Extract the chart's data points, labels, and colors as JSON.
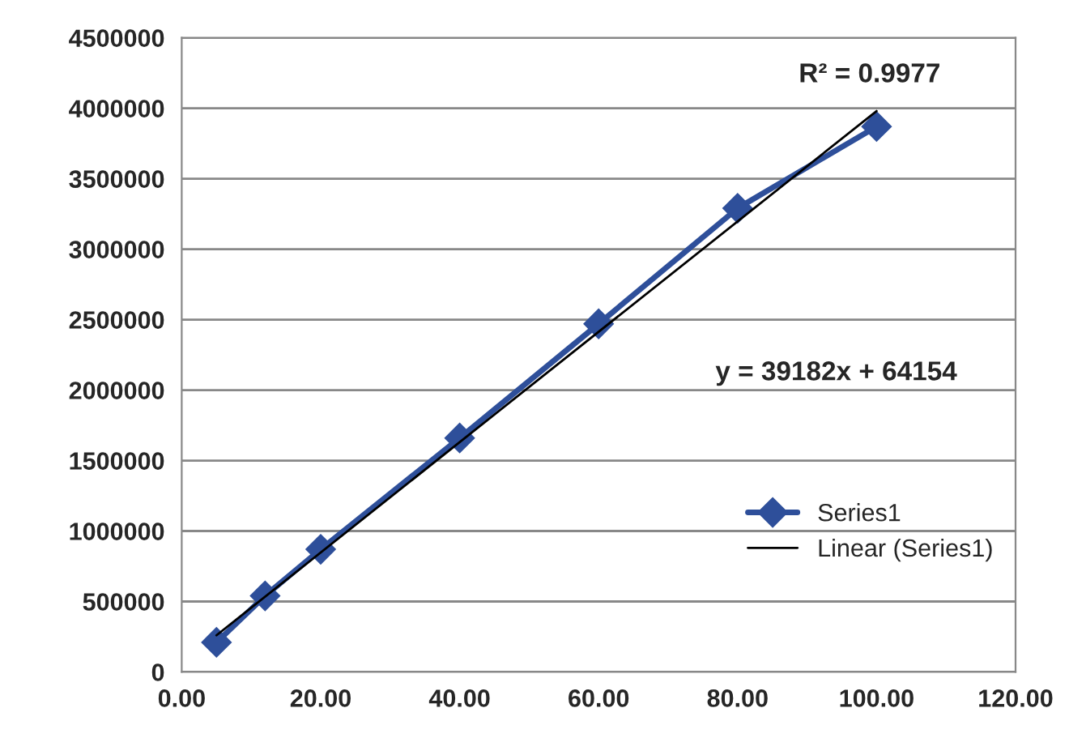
{
  "chart_data": {
    "type": "line",
    "series": [
      {
        "name": "Series1",
        "color": "#2e4f9a",
        "marker": "diamond",
        "x": [
          5,
          12,
          20,
          40,
          60,
          80,
          100
        ],
        "values": [
          210000,
          540000,
          870000,
          1660000,
          2470000,
          3290000,
          3870000
        ]
      },
      {
        "name": "Linear (Series1)",
        "color": "#000000",
        "marker": "none",
        "x": [
          5,
          100
        ],
        "values": [
          260000,
          3980000
        ]
      }
    ],
    "annotations": [
      "R² = 0.9977",
      "y = 39182x + 64154"
    ],
    "xlim": [
      0,
      120
    ],
    "xticks": [
      {
        "value": 0,
        "label": "0.00"
      },
      {
        "value": 20,
        "label": "20.00"
      },
      {
        "value": 40,
        "label": "40.00"
      },
      {
        "value": 60,
        "label": "60.00"
      },
      {
        "value": 80,
        "label": "80.00"
      },
      {
        "value": 100,
        "label": "100.00"
      },
      {
        "value": 120,
        "label": "120.00"
      }
    ],
    "ylim": [
      0,
      4500000
    ],
    "yticks": [
      0,
      500000,
      1000000,
      1500000,
      2000000,
      2500000,
      3000000,
      3500000,
      4000000,
      4500000
    ],
    "grid": "y",
    "legend": "right"
  }
}
